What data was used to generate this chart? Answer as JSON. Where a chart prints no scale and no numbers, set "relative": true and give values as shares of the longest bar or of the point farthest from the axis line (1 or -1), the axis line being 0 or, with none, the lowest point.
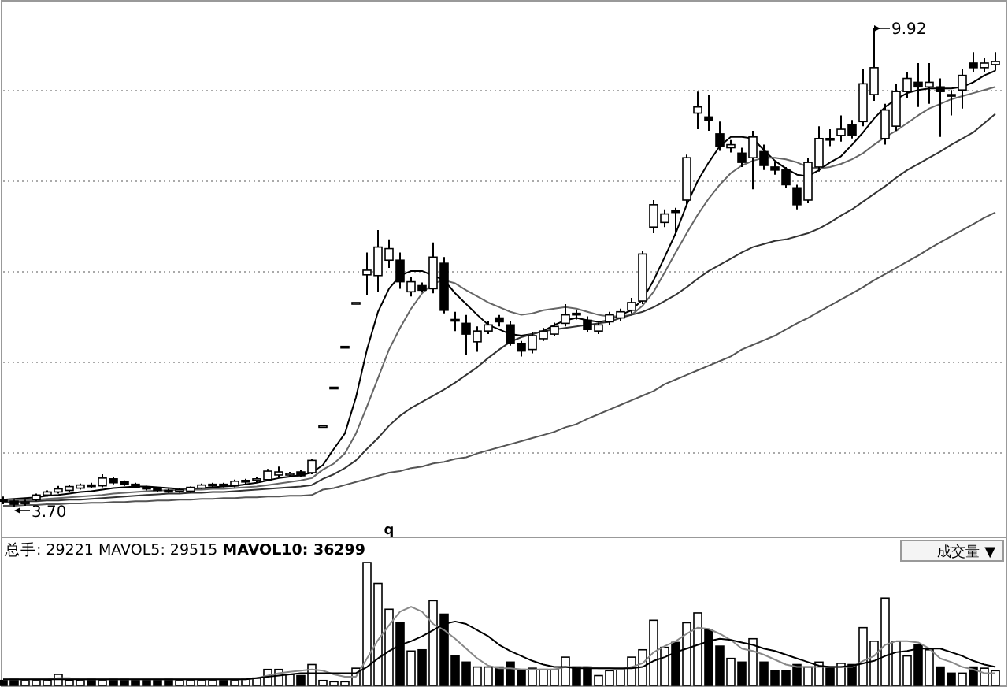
{
  "chart_data": [
    {
      "type": "candlestick",
      "grid": "y",
      "categories": [
        null,
        null,
        null,
        null,
        null,
        null,
        null,
        null,
        null,
        null,
        null,
        null,
        null,
        null,
        null,
        null,
        null,
        null,
        null,
        null,
        null,
        null,
        null,
        null,
        null,
        null,
        null,
        null,
        null,
        null,
        null,
        null,
        null,
        null,
        null,
        null,
        null,
        null,
        null,
        null,
        null,
        null,
        null,
        null,
        null,
        null,
        null,
        null,
        null,
        null,
        null,
        null,
        null,
        null,
        null,
        null,
        null,
        null,
        null,
        null,
        null,
        null,
        null,
        null,
        null,
        null,
        null,
        null,
        null,
        null,
        null,
        null,
        null,
        null,
        null,
        null,
        null,
        null,
        null,
        null,
        null,
        null,
        null,
        null,
        null,
        null,
        null,
        null,
        null,
        null,
        null
      ],
      "ohlc": [
        [
          3.8,
          3.84,
          3.74,
          3.78
        ],
        [
          3.78,
          3.8,
          3.7,
          3.74
        ],
        [
          3.75,
          3.8,
          3.72,
          3.77
        ],
        [
          3.8,
          3.88,
          3.78,
          3.86
        ],
        [
          3.86,
          3.92,
          3.84,
          3.9
        ],
        [
          3.9,
          3.98,
          3.88,
          3.94
        ],
        [
          3.92,
          3.99,
          3.9,
          3.97
        ],
        [
          3.95,
          4.01,
          3.93,
          3.99
        ],
        [
          3.99,
          4.02,
          3.95,
          3.97
        ],
        [
          3.98,
          4.13,
          3.96,
          4.08
        ],
        [
          4.07,
          4.09,
          4.0,
          4.02
        ],
        [
          4.03,
          4.05,
          3.98,
          4.0
        ],
        [
          4.0,
          4.02,
          3.95,
          3.96
        ],
        [
          3.96,
          3.98,
          3.92,
          3.94
        ],
        [
          3.94,
          3.96,
          3.9,
          3.92
        ],
        [
          3.92,
          3.94,
          3.89,
          3.91
        ],
        [
          3.91,
          3.95,
          3.89,
          3.93
        ],
        [
          3.91,
          3.97,
          3.89,
          3.96
        ],
        [
          3.95,
          4.01,
          3.94,
          3.99
        ],
        [
          3.99,
          4.02,
          3.96,
          4.0
        ],
        [
          4.0,
          4.02,
          3.96,
          3.98
        ],
        [
          3.98,
          4.06,
          3.96,
          4.04
        ],
        [
          4.03,
          4.07,
          4.0,
          4.05
        ],
        [
          4.05,
          4.09,
          4.02,
          4.07
        ],
        [
          4.06,
          4.2,
          4.04,
          4.17
        ],
        [
          4.12,
          4.23,
          4.1,
          4.16
        ],
        [
          4.13,
          4.16,
          4.1,
          4.14
        ],
        [
          4.16,
          4.18,
          4.09,
          4.11
        ],
        [
          4.15,
          4.33,
          4.13,
          4.31
        ],
        [
          4.76,
          4.76,
          4.76,
          4.76
        ],
        [
          5.26,
          5.26,
          5.26,
          5.26
        ],
        [
          5.79,
          5.79,
          5.79,
          5.79
        ],
        [
          6.36,
          6.36,
          6.36,
          6.36
        ],
        [
          6.72,
          7.01,
          6.46,
          6.78
        ],
        [
          6.71,
          7.3,
          6.5,
          7.08
        ],
        [
          6.91,
          7.18,
          6.81,
          7.06
        ],
        [
          6.91,
          7.01,
          6.54,
          6.63
        ],
        [
          6.5,
          6.69,
          6.44,
          6.63
        ],
        [
          6.58,
          6.62,
          6.49,
          6.52
        ],
        [
          6.54,
          7.14,
          6.48,
          6.95
        ],
        [
          6.87,
          6.95,
          6.22,
          6.26
        ],
        [
          6.14,
          6.24,
          5.99,
          6.12
        ],
        [
          6.09,
          6.2,
          5.68,
          5.95
        ],
        [
          5.85,
          6.05,
          5.72,
          5.99
        ],
        [
          5.99,
          6.12,
          5.95,
          6.07
        ],
        [
          6.16,
          6.2,
          6.05,
          6.11
        ],
        [
          6.07,
          6.12,
          5.8,
          5.83
        ],
        [
          5.83,
          5.86,
          5.66,
          5.73
        ],
        [
          5.75,
          5.97,
          5.7,
          5.93
        ],
        [
          5.89,
          6.03,
          5.86,
          5.99
        ],
        [
          5.95,
          6.1,
          5.92,
          6.05
        ],
        [
          6.09,
          6.34,
          6.05,
          6.2
        ],
        [
          6.22,
          6.26,
          6.14,
          6.2
        ],
        [
          6.13,
          6.18,
          5.97,
          6.01
        ],
        [
          5.99,
          6.1,
          5.95,
          6.07
        ],
        [
          6.11,
          6.24,
          6.07,
          6.2
        ],
        [
          6.16,
          6.28,
          6.12,
          6.24
        ],
        [
          6.26,
          6.42,
          6.22,
          6.36
        ],
        [
          6.38,
          7.03,
          6.34,
          6.99
        ],
        [
          7.34,
          7.69,
          7.26,
          7.63
        ],
        [
          7.4,
          7.57,
          7.34,
          7.51
        ],
        [
          7.55,
          7.59,
          7.22,
          7.53
        ],
        [
          7.69,
          8.28,
          7.63,
          8.24
        ],
        [
          8.82,
          9.1,
          8.61,
          8.9
        ],
        [
          8.77,
          9.06,
          8.59,
          8.73
        ],
        [
          8.55,
          8.71,
          8.33,
          8.39
        ],
        [
          8.37,
          8.47,
          8.31,
          8.41
        ],
        [
          8.3,
          8.37,
          8.12,
          8.18
        ],
        [
          8.24,
          8.59,
          7.83,
          8.51
        ],
        [
          8.32,
          8.41,
          8.08,
          8.14
        ],
        [
          8.12,
          8.18,
          8.02,
          8.08
        ],
        [
          8.08,
          8.12,
          7.85,
          7.89
        ],
        [
          7.85,
          7.89,
          7.57,
          7.63
        ],
        [
          7.69,
          8.24,
          7.65,
          8.18
        ],
        [
          8.12,
          8.65,
          8.06,
          8.49
        ],
        [
          8.49,
          8.61,
          8.39,
          8.47
        ],
        [
          8.53,
          8.79,
          8.45,
          8.61
        ],
        [
          8.67,
          8.73,
          8.49,
          8.53
        ],
        [
          8.71,
          9.39,
          8.65,
          9.2
        ],
        [
          9.06,
          9.92,
          8.98,
          9.41
        ],
        [
          8.49,
          8.94,
          8.41,
          8.86
        ],
        [
          8.65,
          9.2,
          8.59,
          9.1
        ],
        [
          9.1,
          9.35,
          9.02,
          9.27
        ],
        [
          9.22,
          9.47,
          8.9,
          9.16
        ],
        [
          9.16,
          9.47,
          8.94,
          9.22
        ],
        [
          9.16,
          9.27,
          8.51,
          9.1
        ],
        [
          9.06,
          9.12,
          8.79,
          9.04
        ],
        [
          9.12,
          9.39,
          8.88,
          9.31
        ],
        [
          9.47,
          9.61,
          9.35,
          9.41
        ],
        [
          9.41,
          9.53,
          9.35,
          9.47
        ],
        [
          9.45,
          9.61,
          9.37,
          9.49
        ]
      ],
      "series": [
        {
          "type": "line",
          "color": "#000000",
          "values": [
            3.8,
            3.81,
            3.82,
            3.83,
            3.85,
            3.86,
            3.88,
            3.9,
            3.91,
            3.93,
            3.95,
            3.96,
            3.97,
            3.97,
            3.96,
            3.95,
            3.94,
            3.94,
            3.95,
            3.96,
            3.97,
            3.98,
            4.0,
            4.02,
            4.05,
            4.08,
            4.1,
            4.12,
            4.15,
            4.25,
            4.46,
            4.66,
            5.13,
            5.75,
            6.24,
            6.54,
            6.71,
            6.77,
            6.77,
            6.71,
            6.65,
            6.48,
            6.34,
            6.2,
            6.07,
            6.01,
            5.95,
            5.93,
            5.95,
            5.99,
            6.07,
            6.13,
            6.16,
            6.13,
            6.11,
            6.13,
            6.2,
            6.26,
            6.4,
            6.65,
            6.95,
            7.26,
            7.63,
            7.94,
            8.18,
            8.39,
            8.51,
            8.51,
            8.49,
            8.34,
            8.2,
            8.1,
            8.02,
            8.0,
            8.08,
            8.18,
            8.26,
            8.41,
            8.57,
            8.75,
            8.9,
            9.0,
            9.08,
            9.12,
            9.14,
            9.14,
            9.14,
            9.16,
            9.22,
            9.31,
            9.37
          ]
        },
        {
          "type": "line",
          "color": "#666666",
          "values": [
            3.79,
            3.79,
            3.8,
            3.8,
            3.81,
            3.82,
            3.83,
            3.84,
            3.85,
            3.86,
            3.88,
            3.89,
            3.9,
            3.91,
            3.92,
            3.92,
            3.93,
            3.93,
            3.93,
            3.94,
            3.94,
            3.95,
            3.96,
            3.97,
            3.99,
            4.01,
            4.03,
            4.05,
            4.08,
            4.19,
            4.27,
            4.4,
            4.66,
            5.01,
            5.38,
            5.75,
            6.03,
            6.28,
            6.48,
            6.61,
            6.65,
            6.61,
            6.52,
            6.44,
            6.36,
            6.3,
            6.24,
            6.2,
            6.22,
            6.26,
            6.28,
            6.3,
            6.28,
            6.24,
            6.2,
            6.18,
            6.18,
            6.2,
            6.32,
            6.5,
            6.75,
            7.01,
            7.26,
            7.5,
            7.71,
            7.89,
            8.04,
            8.14,
            8.2,
            8.24,
            8.24,
            8.22,
            8.18,
            8.12,
            8.1,
            8.12,
            8.16,
            8.22,
            8.3,
            8.41,
            8.51,
            8.59,
            8.69,
            8.79,
            8.88,
            8.94,
            9.0,
            9.04,
            9.08,
            9.12,
            9.16
          ]
        },
        {
          "type": "line",
          "color": "#333333",
          "values": [
            3.77,
            3.77,
            3.78,
            3.78,
            3.79,
            3.79,
            3.8,
            3.8,
            3.81,
            3.82,
            3.83,
            3.84,
            3.85,
            3.86,
            3.87,
            3.88,
            3.88,
            3.89,
            3.89,
            3.9,
            3.9,
            3.91,
            3.92,
            3.93,
            3.94,
            3.95,
            3.96,
            3.97,
            3.99,
            4.07,
            4.13,
            4.21,
            4.31,
            4.46,
            4.6,
            4.76,
            4.89,
            4.99,
            5.07,
            5.15,
            5.23,
            5.32,
            5.42,
            5.52,
            5.64,
            5.75,
            5.85,
            5.91,
            5.95,
            5.99,
            6.01,
            6.03,
            6.05,
            6.07,
            6.09,
            6.11,
            6.16,
            6.2,
            6.24,
            6.3,
            6.38,
            6.46,
            6.56,
            6.67,
            6.77,
            6.85,
            6.93,
            7.01,
            7.08,
            7.12,
            7.16,
            7.18,
            7.22,
            7.26,
            7.32,
            7.4,
            7.49,
            7.57,
            7.67,
            7.77,
            7.87,
            7.98,
            8.08,
            8.16,
            8.24,
            8.32,
            8.41,
            8.49,
            8.57,
            8.69,
            8.81
          ]
        },
        {
          "type": "line",
          "color": "#555555",
          "values": [
            3.72,
            3.72,
            3.73,
            3.73,
            3.74,
            3.74,
            3.75,
            3.75,
            3.76,
            3.76,
            3.77,
            3.77,
            3.78,
            3.78,
            3.79,
            3.79,
            3.8,
            3.8,
            3.81,
            3.81,
            3.82,
            3.82,
            3.83,
            3.83,
            3.84,
            3.84,
            3.85,
            3.85,
            3.86,
            3.93,
            3.95,
            3.99,
            4.03,
            4.07,
            4.11,
            4.15,
            4.17,
            4.21,
            4.23,
            4.27,
            4.29,
            4.33,
            4.35,
            4.4,
            4.44,
            4.48,
            4.52,
            4.56,
            4.6,
            4.64,
            4.68,
            4.74,
            4.78,
            4.85,
            4.91,
            4.97,
            5.03,
            5.09,
            5.15,
            5.21,
            5.3,
            5.36,
            5.42,
            5.48,
            5.54,
            5.6,
            5.66,
            5.75,
            5.81,
            5.87,
            5.93,
            6.01,
            6.09,
            6.16,
            6.24,
            6.32,
            6.4,
            6.48,
            6.56,
            6.65,
            6.73,
            6.81,
            6.89,
            6.97,
            7.06,
            7.14,
            7.22,
            7.3,
            7.38,
            7.46,
            7.53
          ]
        }
      ],
      "annotations": [
        "9.92",
        "3.70",
        "q"
      ]
    },
    {
      "type": "bar",
      "relative": true,
      "title": "总手: 29221 MAVOL5: 29515 **MAVOL10: 36299**",
      "categories": [
        null,
        null,
        null,
        null,
        null,
        null,
        null,
        null,
        null,
        null,
        null,
        null,
        null,
        null,
        null,
        null,
        null,
        null,
        null,
        null,
        null,
        null,
        null,
        null,
        null,
        null,
        null,
        null,
        null,
        null,
        null,
        null,
        null,
        null,
        null,
        null,
        null,
        null,
        null,
        null,
        null,
        null,
        null,
        null,
        null,
        null,
        null,
        null,
        null,
        null,
        null,
        null,
        null,
        null,
        null,
        null,
        null,
        null,
        null,
        null,
        null,
        null,
        null,
        null,
        null,
        null,
        null,
        null,
        null,
        null,
        null,
        null,
        null,
        null,
        null,
        null,
        null,
        null,
        null,
        null,
        null,
        null,
        null,
        null,
        null,
        null,
        null,
        null,
        null,
        null,
        null
      ],
      "series": [
        {
          "type": "bar",
          "values": [
            0.04,
            0.05,
            0.04,
            0.04,
            0.04,
            0.09,
            0.04,
            0.04,
            0.05,
            0.04,
            0.05,
            0.05,
            0.04,
            0.04,
            0.04,
            0.05,
            0.04,
            0.04,
            0.04,
            0.04,
            0.04,
            0.04,
            0.05,
            0.06,
            0.13,
            0.13,
            0.09,
            0.08,
            0.17,
            0.04,
            0.03,
            0.03,
            0.14,
            1,
            0.83,
            0.62,
            0.51,
            0.28,
            0.29,
            0.69,
            0.58,
            0.24,
            0.19,
            0.15,
            0.15,
            0.15,
            0.19,
            0.13,
            0.14,
            0.13,
            0.13,
            0.23,
            0.15,
            0.15,
            0.08,
            0.12,
            0.13,
            0.23,
            0.29,
            0.53,
            0.31,
            0.35,
            0.51,
            0.59,
            0.45,
            0.32,
            0.22,
            0.19,
            0.38,
            0.19,
            0.12,
            0.12,
            0.17,
            0.15,
            0.19,
            0.15,
            0.18,
            0.17,
            0.47,
            0.36,
            0.71,
            0.36,
            0.24,
            0.33,
            0.29,
            0.15,
            0.1,
            0.1,
            0.15,
            0.14,
            0.12
          ],
          "colors": [
            "#000000",
            "#000000",
            "#ffffff",
            "#ffffff",
            "#ffffff",
            "#ffffff",
            "#ffffff",
            "#ffffff",
            "#000000",
            "#ffffff",
            "#000000",
            "#000000",
            "#000000",
            "#000000",
            "#000000",
            "#000000",
            "#ffffff",
            "#ffffff",
            "#ffffff",
            "#ffffff",
            "#000000",
            "#ffffff",
            "#ffffff",
            "#ffffff",
            "#ffffff",
            "#ffffff",
            "#ffffff",
            "#000000",
            "#ffffff",
            "#ffffff",
            "#ffffff",
            "#ffffff",
            "#ffffff",
            "#ffffff",
            "#ffffff",
            "#ffffff",
            "#000000",
            "#ffffff",
            "#000000",
            "#ffffff",
            "#000000",
            "#000000",
            "#000000",
            "#ffffff",
            "#ffffff",
            "#000000",
            "#000000",
            "#000000",
            "#ffffff",
            "#ffffff",
            "#ffffff",
            "#ffffff",
            "#000000",
            "#000000",
            "#ffffff",
            "#ffffff",
            "#ffffff",
            "#ffffff",
            "#ffffff",
            "#ffffff",
            "#ffffff",
            "#000000",
            "#ffffff",
            "#ffffff",
            "#000000",
            "#000000",
            "#ffffff",
            "#000000",
            "#ffffff",
            "#000000",
            "#000000",
            "#000000",
            "#000000",
            "#ffffff",
            "#ffffff",
            "#000000",
            "#ffffff",
            "#000000",
            "#ffffff",
            "#ffffff",
            "#ffffff",
            "#ffffff",
            "#ffffff",
            "#000000",
            "#ffffff",
            "#000000",
            "#000000",
            "#ffffff",
            "#000000",
            "#ffffff",
            "#ffffff"
          ]
        },
        {
          "type": "line",
          "color": "#888888",
          "values": [
            0.05,
            0.05,
            0.05,
            0.05,
            0.05,
            0.06,
            0.06,
            0.05,
            0.05,
            0.05,
            0.05,
            0.05,
            0.05,
            0.05,
            0.05,
            0.05,
            0.05,
            0.05,
            0.05,
            0.05,
            0.05,
            0.05,
            0.05,
            0.06,
            0.08,
            0.1,
            0.11,
            0.12,
            0.13,
            0.12,
            0.09,
            0.07,
            0.07,
            0.22,
            0.37,
            0.49,
            0.6,
            0.64,
            0.6,
            0.5,
            0.45,
            0.38,
            0.3,
            0.22,
            0.16,
            0.14,
            0.14,
            0.13,
            0.13,
            0.13,
            0.13,
            0.15,
            0.15,
            0.15,
            0.14,
            0.14,
            0.13,
            0.15,
            0.18,
            0.27,
            0.32,
            0.36,
            0.42,
            0.47,
            0.46,
            0.42,
            0.37,
            0.3,
            0.28,
            0.25,
            0.21,
            0.17,
            0.15,
            0.15,
            0.15,
            0.15,
            0.15,
            0.15,
            0.2,
            0.24,
            0.33,
            0.36,
            0.36,
            0.35,
            0.3,
            0.22,
            0.19,
            0.15,
            0.13,
            0.1,
            0.1
          ]
        },
        {
          "type": "line",
          "color": "#000000",
          "values": [
            0.05,
            0.05,
            0.05,
            0.05,
            0.05,
            0.05,
            0.05,
            0.05,
            0.05,
            0.05,
            0.05,
            0.05,
            0.05,
            0.05,
            0.05,
            0.05,
            0.05,
            0.05,
            0.05,
            0.05,
            0.05,
            0.05,
            0.05,
            0.06,
            0.07,
            0.08,
            0.09,
            0.1,
            0.1,
            0.1,
            0.1,
            0.1,
            0.1,
            0.15,
            0.22,
            0.28,
            0.33,
            0.36,
            0.4,
            0.45,
            0.5,
            0.52,
            0.5,
            0.45,
            0.4,
            0.33,
            0.28,
            0.24,
            0.2,
            0.17,
            0.15,
            0.15,
            0.14,
            0.14,
            0.14,
            0.14,
            0.14,
            0.14,
            0.15,
            0.2,
            0.23,
            0.27,
            0.3,
            0.33,
            0.36,
            0.38,
            0.37,
            0.35,
            0.33,
            0.3,
            0.28,
            0.25,
            0.22,
            0.19,
            0.16,
            0.15,
            0.15,
            0.16,
            0.18,
            0.2,
            0.24,
            0.27,
            0.28,
            0.3,
            0.3,
            0.3,
            0.27,
            0.24,
            0.2,
            0.17,
            0.15
          ]
        }
      ],
      "annotations": [
        "成交量 ▼"
      ]
    }
  ]
}
